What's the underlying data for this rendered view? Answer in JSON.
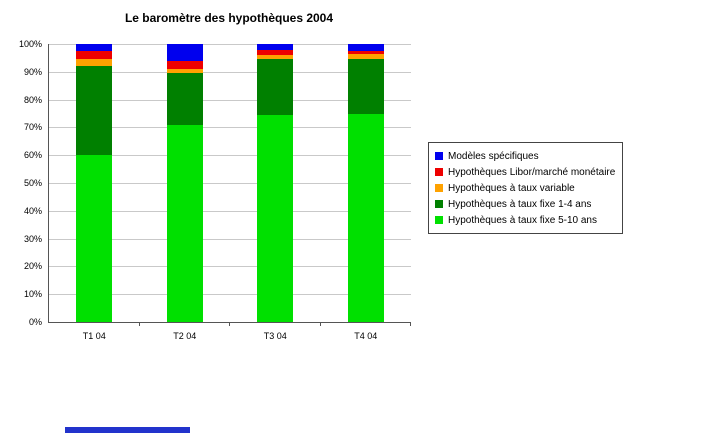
{
  "title": "Le baromètre des hypothèques 2004",
  "chart_data": {
    "type": "bar",
    "stacked": true,
    "stacked_to_100_percent": true,
    "title": "Le baromètre des hypothèques 2004",
    "categories": [
      "T1 04",
      "T2 04",
      "T3 04",
      "T4 04"
    ],
    "series": [
      {
        "name": "Hypothèques à taux fixe 5-10 ans",
        "color": "#00e000",
        "values": [
          60,
          71,
          74.5,
          75
        ]
      },
      {
        "name": "Hypothèques à taux fixe 1-4 ans",
        "color": "#008000",
        "values": [
          32,
          18.5,
          20,
          19.5
        ]
      },
      {
        "name": "Hypothèques à taux variable",
        "color": "#ffa200",
        "values": [
          2.5,
          1.5,
          1.5,
          2
        ]
      },
      {
        "name": "Hypothèques Libor/marché monétaire",
        "color": "#ee0000",
        "values": [
          3,
          3,
          2,
          1
        ]
      },
      {
        "name": "Modèles spécifiques",
        "color": "#0000ee",
        "values": [
          2.5,
          6,
          2,
          2.5
        ]
      }
    ],
    "xlabel": "",
    "ylabel": "",
    "ylim": [
      0,
      100
    ],
    "ytick_labels": [
      "0%",
      "10%",
      "20%",
      "30%",
      "40%",
      "50%",
      "60%",
      "70%",
      "80%",
      "90%",
      "100%"
    ],
    "grid": true,
    "legend_position": "right",
    "legend_order_top_to_bottom": [
      "Modèles spécifiques",
      "Hypothèques Libor/marché monétaire",
      "Hypothèques à taux variable",
      "Hypothèques à taux fixe 1-4 ans",
      "Hypothèques à taux fixe 5-10 ans"
    ]
  },
  "decorations": {
    "bottom_bar_color": "#2233cc"
  }
}
